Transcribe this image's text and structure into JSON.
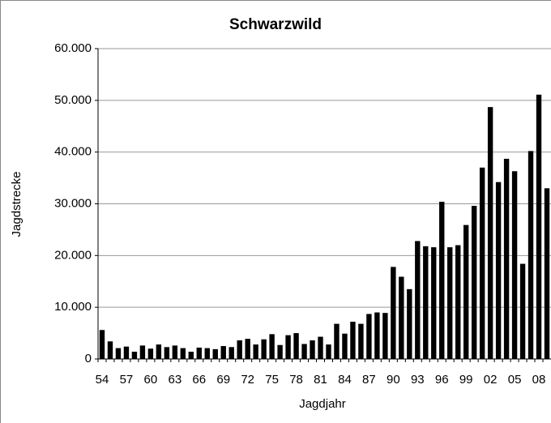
{
  "chart_data": {
    "type": "bar",
    "title": "Schwarzwild",
    "x_label": "Jagdjahr",
    "y_label": "Jagdstrecke",
    "categories": [
      "54",
      null,
      null,
      "57",
      null,
      null,
      "60",
      null,
      null,
      "63",
      null,
      null,
      "66",
      null,
      null,
      "69",
      null,
      null,
      "72",
      null,
      null,
      "75",
      null,
      null,
      "78",
      null,
      null,
      "81",
      null,
      null,
      "84",
      null,
      null,
      "87",
      null,
      null,
      "90",
      null,
      null,
      "93",
      null,
      null,
      "96",
      null,
      null,
      "99",
      null,
      null,
      "02",
      null,
      null,
      "05",
      null,
      null,
      "08",
      null
    ],
    "values": [
      5600,
      3400,
      2100,
      2400,
      1400,
      2600,
      2000,
      2800,
      2300,
      2600,
      2100,
      1400,
      2200,
      2100,
      1900,
      2500,
      2300,
      3600,
      3900,
      2800,
      3800,
      4800,
      2700,
      4600,
      5000,
      2900,
      3600,
      4300,
      2800,
      6800,
      4900,
      7200,
      6800,
      8700,
      9000,
      8900,
      17800,
      15900,
      13500,
      22800,
      21800,
      21600,
      30400,
      21600,
      22000,
      25900,
      29600,
      37000,
      48700,
      34200,
      38700,
      36300,
      18400,
      40200,
      51100,
      33000
    ],
    "color": "#000000",
    "ylim": [
      0,
      60000
    ],
    "yticks": [
      0,
      {
        "value": 10000,
        "label": "10.000"
      },
      {
        "value": 20000,
        "label": "20.000"
      },
      {
        "value": 30000,
        "label": "30.000"
      },
      {
        "value": 40000,
        "label": "40.000"
      },
      {
        "value": 50000,
        "label": "50.000"
      },
      {
        "value": 60000,
        "label": "60.000"
      }
    ],
    "grid": true
  }
}
